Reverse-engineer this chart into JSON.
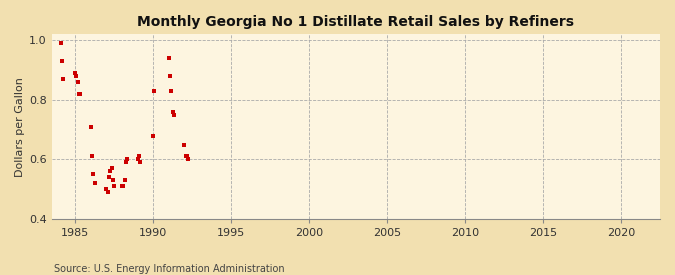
{
  "title": "Monthly Georgia No 1 Distillate Retail Sales by Refiners",
  "ylabel": "Dollars per Gallon",
  "source": "Source: U.S. Energy Information Administration",
  "xlim": [
    1983.5,
    2022.5
  ],
  "ylim": [
    0.4,
    1.02
  ],
  "xticks": [
    1985,
    1990,
    1995,
    2000,
    2005,
    2010,
    2015,
    2020
  ],
  "yticks": [
    0.4,
    0.6,
    0.8,
    1.0
  ],
  "background_color": "#f2e0b0",
  "plot_bg_color": "#fdf5e0",
  "marker_color": "#cc0000",
  "x": [
    1984.083,
    1984.167,
    1984.25,
    1985.0,
    1985.083,
    1985.167,
    1985.25,
    1985.333,
    1986.0,
    1986.083,
    1986.167,
    1986.25,
    1987.0,
    1987.083,
    1987.167,
    1987.25,
    1987.333,
    1987.417,
    1987.5,
    1988.0,
    1988.083,
    1988.167,
    1988.25,
    1988.333,
    1989.0,
    1989.083,
    1989.167,
    1990.0,
    1990.083,
    1991.0,
    1991.083,
    1991.167,
    1991.25,
    1991.333,
    1992.0,
    1992.083,
    1992.167,
    1992.25
  ],
  "y": [
    0.99,
    0.93,
    0.87,
    0.89,
    0.88,
    0.86,
    0.82,
    0.82,
    0.71,
    0.61,
    0.55,
    0.52,
    0.5,
    0.49,
    0.54,
    0.56,
    0.57,
    0.53,
    0.51,
    0.51,
    0.51,
    0.53,
    0.59,
    0.6,
    0.6,
    0.61,
    0.59,
    0.68,
    0.83,
    0.94,
    0.88,
    0.83,
    0.76,
    0.75,
    0.65,
    0.61,
    0.61,
    0.6
  ]
}
